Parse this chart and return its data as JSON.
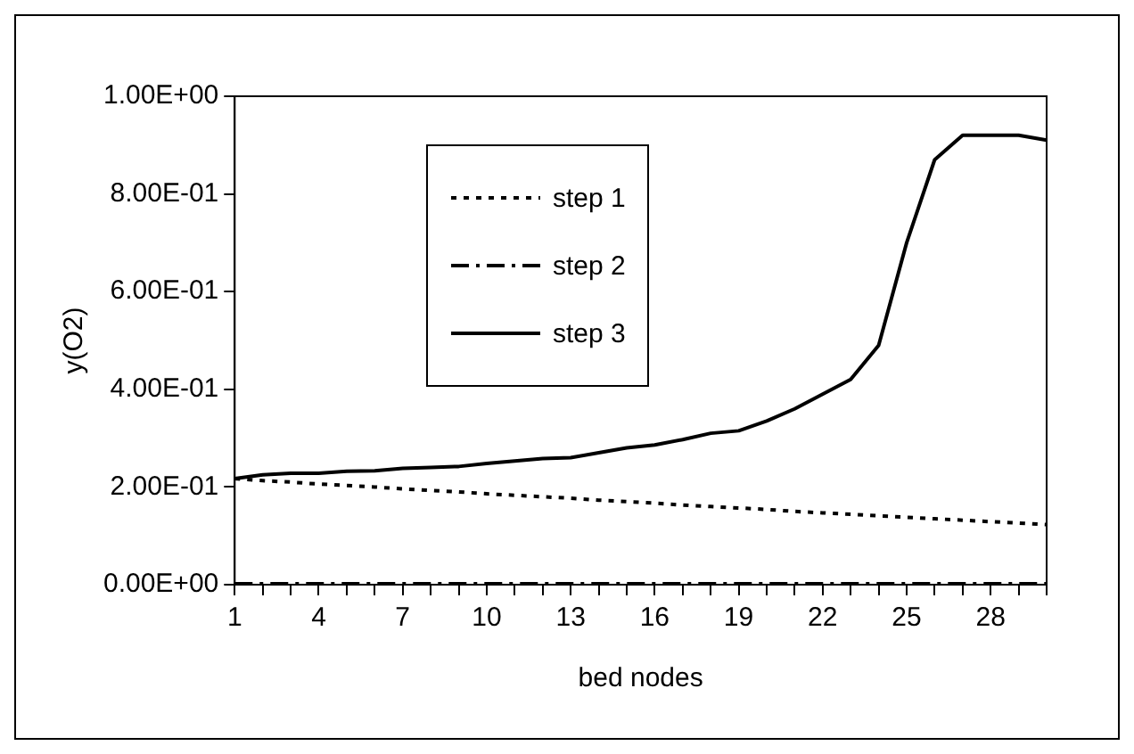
{
  "chart_data": {
    "type": "line",
    "xlabel": "bed nodes",
    "ylabel": "y(O2)",
    "categories": [
      "1",
      null,
      null,
      "4",
      null,
      null,
      "7",
      null,
      null,
      "10",
      null,
      null,
      "13",
      null,
      null,
      "16",
      null,
      null,
      "19",
      null,
      null,
      "22",
      null,
      null,
      "25",
      null,
      null,
      "28",
      null,
      null
    ],
    "series": [
      {
        "name": "step 1",
        "color": "#000000",
        "line_style": "dotted",
        "values": [
          0.217,
          0.213,
          0.21,
          0.206,
          0.203,
          0.2,
          0.196,
          0.193,
          0.19,
          0.186,
          0.183,
          0.18,
          0.177,
          0.173,
          0.17,
          0.167,
          0.163,
          0.16,
          0.157,
          0.154,
          0.15,
          0.147,
          0.144,
          0.141,
          0.138,
          0.135,
          0.132,
          0.129,
          0.126,
          0.123
        ]
      },
      {
        "name": "step 2",
        "color": "#000000",
        "line_style": "dashed",
        "values": [
          0.002,
          0.002,
          0.002,
          0.002,
          0.002,
          0.002,
          0.002,
          0.002,
          0.002,
          0.002,
          0.002,
          0.002,
          0.002,
          0.002,
          0.002,
          0.002,
          0.002,
          0.002,
          0.002,
          0.002,
          0.002,
          0.002,
          0.002,
          0.002,
          0.002,
          0.002,
          0.002,
          0.002,
          0.002,
          0.002
        ]
      },
      {
        "name": "step 3",
        "color": "#000000",
        "line_style": "solid",
        "values": [
          0.217,
          0.225,
          0.228,
          0.228,
          0.232,
          0.233,
          0.238,
          0.24,
          0.242,
          0.248,
          0.253,
          0.258,
          0.26,
          0.27,
          0.28,
          0.286,
          0.297,
          0.31,
          0.315,
          0.335,
          0.36,
          0.39,
          0.42,
          0.49,
          0.7,
          0.87,
          0.92,
          0.92,
          0.92,
          0.91
        ]
      }
    ],
    "ylim": [
      0,
      1
    ],
    "yticks": [
      {
        "value": 0,
        "label": "0.00E+00"
      },
      {
        "value": 0.2,
        "label": "2.00E-01"
      },
      {
        "value": 0.4,
        "label": "4.00E-01"
      },
      {
        "value": 0.6,
        "label": "6.00E-01"
      },
      {
        "value": 0.8,
        "label": "8.00E-01"
      },
      {
        "value": 1,
        "label": "1.00E+00"
      }
    ],
    "grid": false,
    "legend": "top left",
    "marker": "none"
  }
}
